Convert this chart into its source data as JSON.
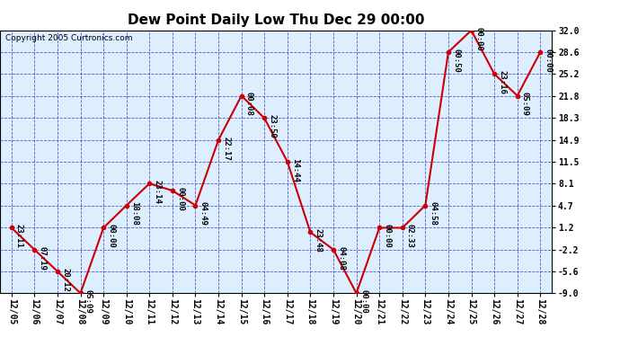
{
  "title": "Dew Point Daily Low Thu Dec 29 00:00",
  "copyright": "Copyright 2005 Curtronics.com",
  "x_labels": [
    "12/05",
    "12/06",
    "12/07",
    "12/08",
    "12/09",
    "12/10",
    "12/11",
    "12/12",
    "12/13",
    "12/14",
    "12/15",
    "12/16",
    "12/17",
    "12/18",
    "12/19",
    "12/20",
    "12/21",
    "12/22",
    "12/23",
    "12/24",
    "12/25",
    "12/26",
    "12/27",
    "12/28"
  ],
  "y_values": [
    1.2,
    -2.2,
    -5.6,
    -9.0,
    1.2,
    4.7,
    8.1,
    7.0,
    4.7,
    14.9,
    21.8,
    18.3,
    11.5,
    0.5,
    -2.2,
    -9.0,
    1.2,
    1.2,
    4.7,
    28.6,
    32.0,
    25.2,
    21.8,
    28.6
  ],
  "point_labels": [
    "23:11",
    "07:19",
    "20:12",
    "05:09",
    "00:00",
    "18:08",
    "23:14",
    "00:00",
    "04:49",
    "22:17",
    "00:08",
    "23:50",
    "14:44",
    "23:48",
    "04:08",
    "00:00",
    "00:00",
    "02:33",
    "04:58",
    "00:50",
    "00:00",
    "23:16",
    "05:09",
    "00:00"
  ],
  "ylim": [
    -9.0,
    32.0
  ],
  "ytick_vals": [
    32.0,
    28.6,
    25.2,
    21.8,
    18.3,
    14.9,
    11.5,
    8.1,
    4.7,
    1.2,
    -2.2,
    -5.6,
    -9.0
  ],
  "ytick_labels": [
    "32.0",
    "28.6",
    "25.2",
    "21.8",
    "18.3",
    "14.9",
    "11.5",
    "8.1",
    "4.7",
    "1.2",
    "-2.2",
    "-5.6",
    "-9.0"
  ],
  "line_color": "#cc0000",
  "marker_color": "#cc0000",
  "grid_color": "#3333cc",
  "bg_color": "#ddeeff",
  "title_fontsize": 11,
  "tick_fontsize": 7,
  "label_fontsize": 6.5,
  "copyright_fontsize": 6.5
}
